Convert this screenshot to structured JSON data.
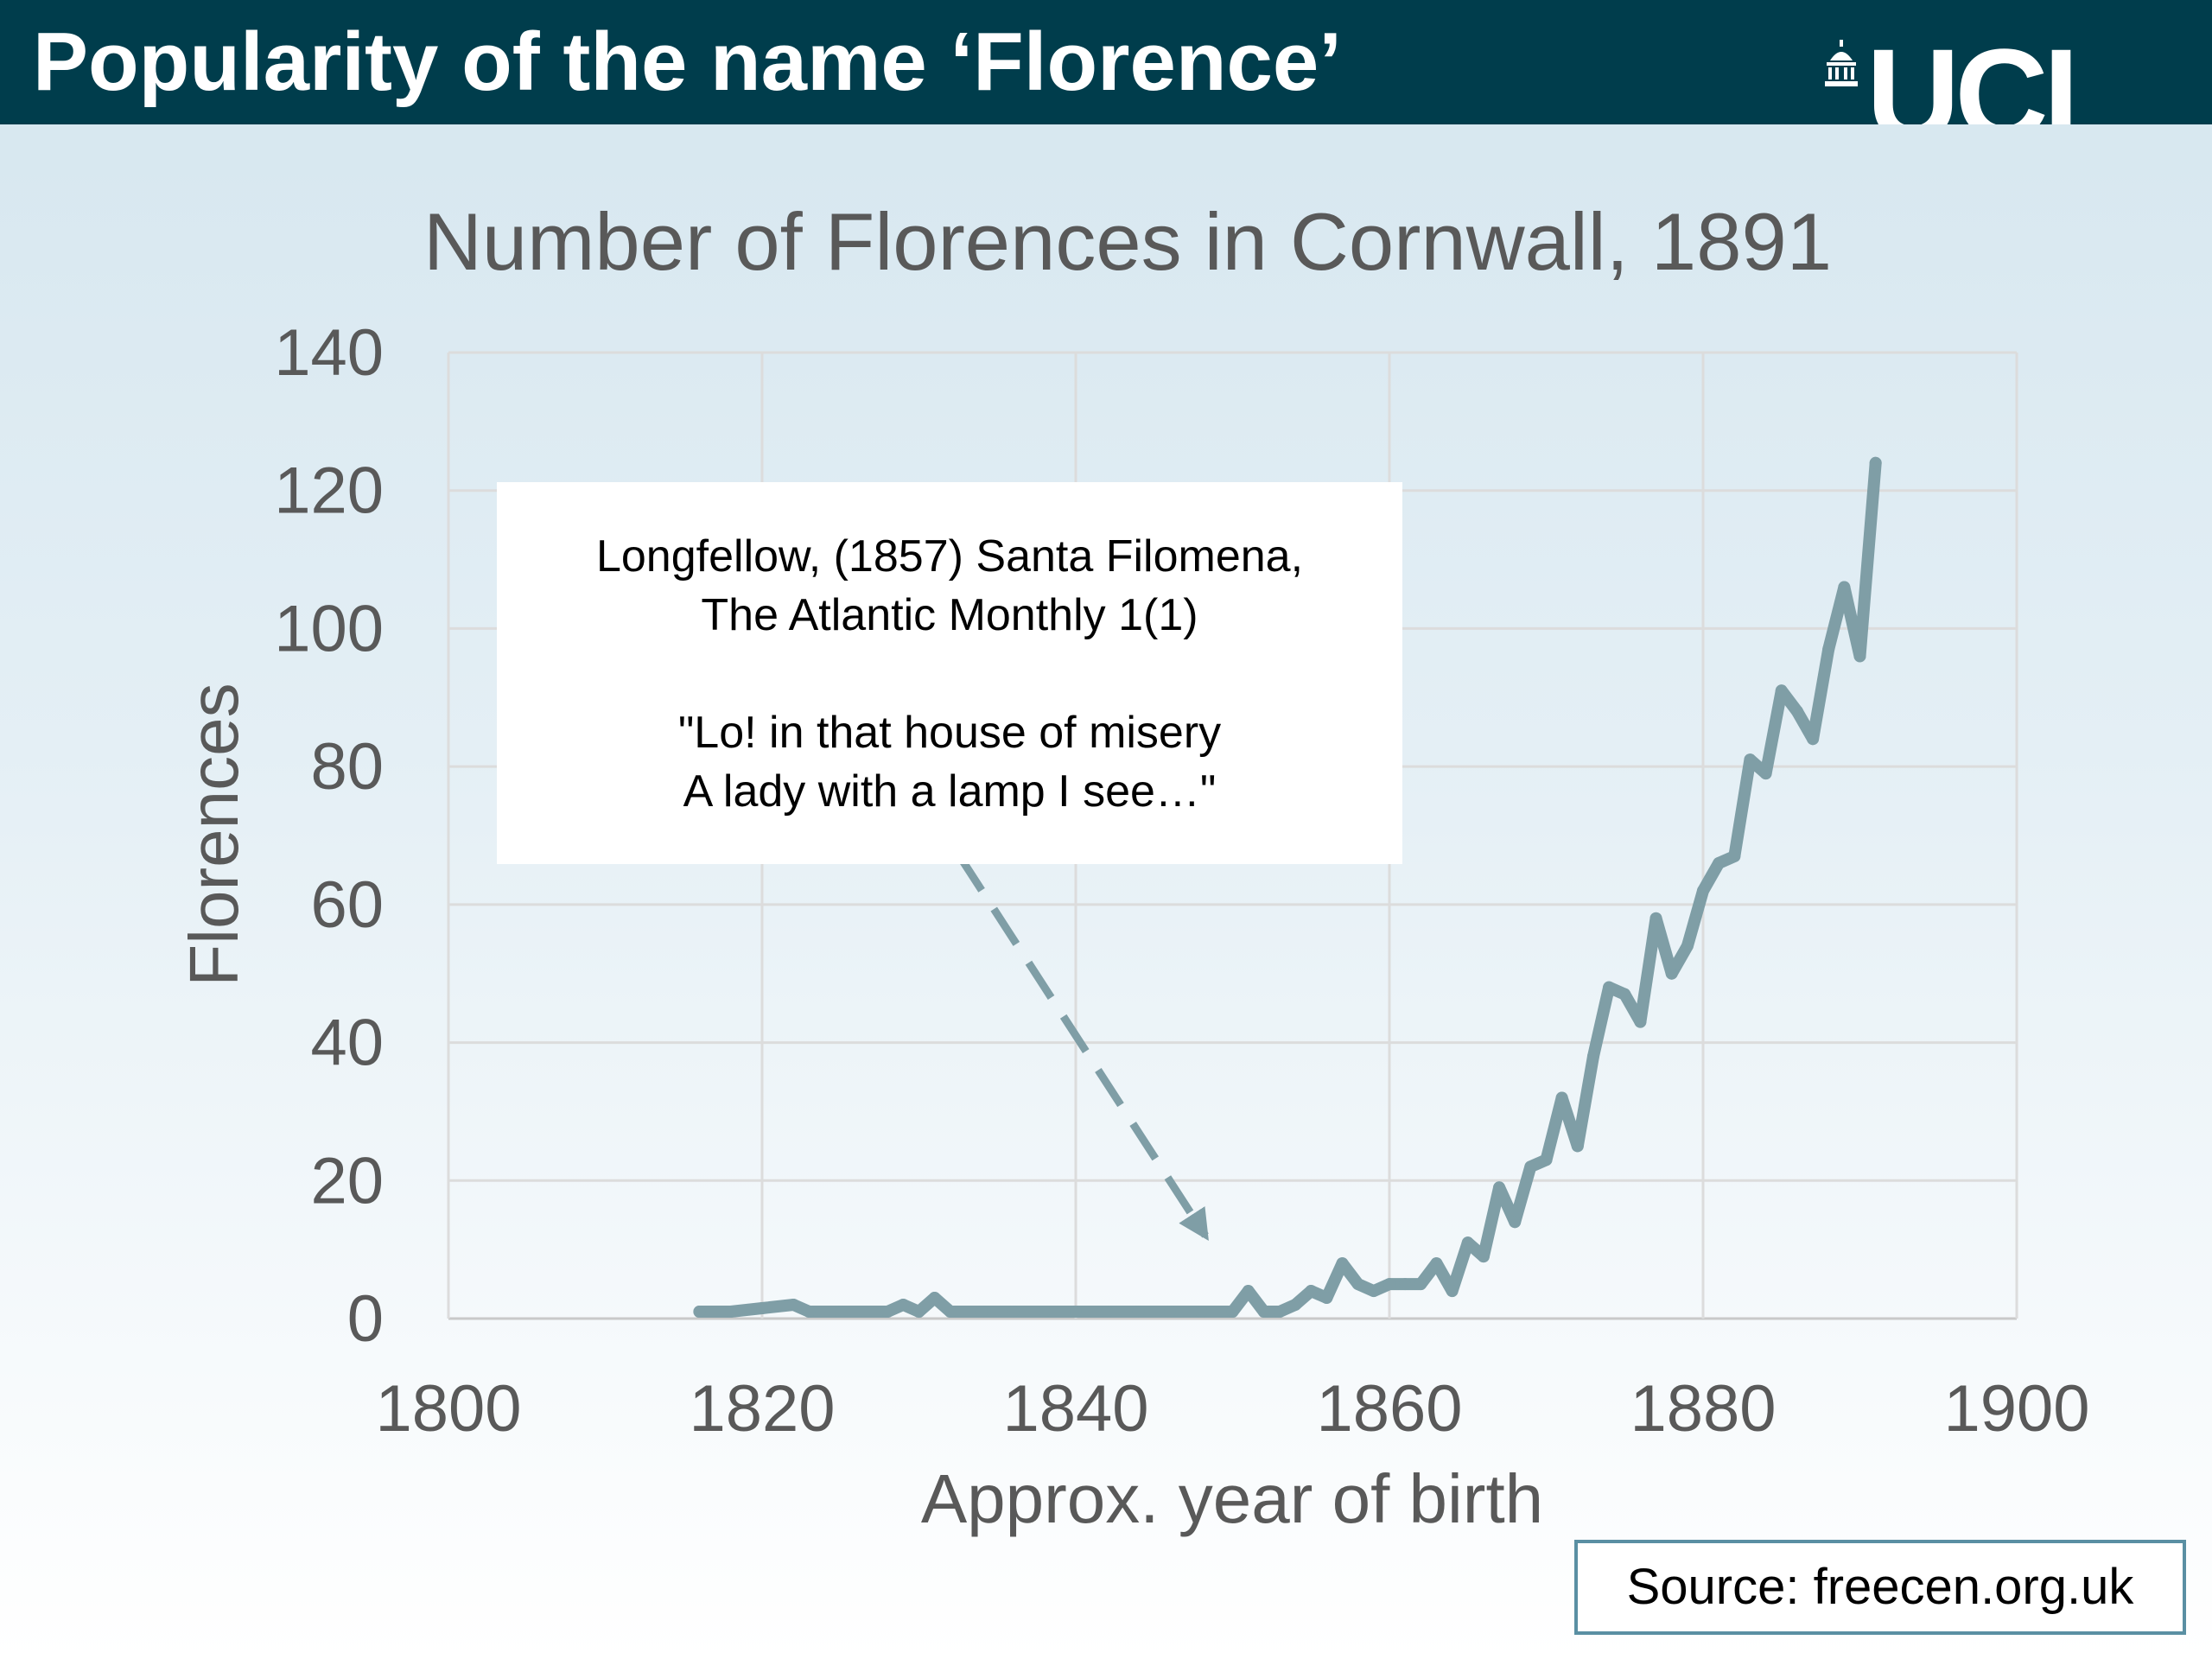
{
  "header": {
    "title": "Popularity of the name ‘Florence’",
    "logo_text": "UCL",
    "background_color": "#003d4c"
  },
  "chart_data": {
    "type": "line",
    "title": "Number of Florences in Cornwall, 1891",
    "xlabel": "Approx. year of birth",
    "ylabel": "Florences",
    "xlim": [
      1800,
      1900
    ],
    "ylim": [
      0,
      140
    ],
    "x_ticks": [
      1800,
      1820,
      1840,
      1860,
      1880,
      1900
    ],
    "y_ticks": [
      0,
      20,
      40,
      60,
      80,
      100,
      120,
      140
    ],
    "grid": true,
    "line_color": "#7f9ea6",
    "x": [
      1816,
      1818,
      1820,
      1822,
      1823,
      1825,
      1828,
      1829,
      1830,
      1831,
      1832,
      1834,
      1836,
      1838,
      1840,
      1842,
      1844,
      1846,
      1848,
      1850,
      1851,
      1852,
      1853,
      1854,
      1855,
      1856,
      1857,
      1858,
      1859,
      1860,
      1861,
      1862,
      1863,
      1864,
      1865,
      1866,
      1867,
      1868,
      1869,
      1870,
      1871,
      1872,
      1873,
      1874,
      1875,
      1876,
      1877,
      1878,
      1879,
      1880,
      1881,
      1882,
      1883,
      1884,
      1885,
      1886,
      1887,
      1888,
      1889,
      1890,
      1891
    ],
    "y": [
      1,
      1,
      1.5,
      2,
      1,
      1,
      1,
      2,
      1,
      3,
      1,
      1,
      1,
      1,
      1,
      1,
      1,
      1,
      1,
      1,
      4,
      1,
      1,
      2,
      4,
      3,
      8,
      5,
      4,
      5,
      5,
      5,
      8,
      4,
      11,
      9,
      19,
      14,
      22,
      23,
      32,
      25,
      38,
      48,
      47,
      43,
      58,
      50,
      54,
      62,
      66,
      67,
      81,
      79,
      91,
      88,
      84,
      97,
      106,
      96,
      124
    ]
  },
  "annotation": {
    "line1": "Longfellow, (1857) Santa Filomena,",
    "line2": "The Atlantic Monthly 1(1)",
    "line3": "\"Lo! in that house of misery",
    "line4": "A lady with a lamp I see…\""
  },
  "source": {
    "text": "Source: freecen.org.uk"
  }
}
